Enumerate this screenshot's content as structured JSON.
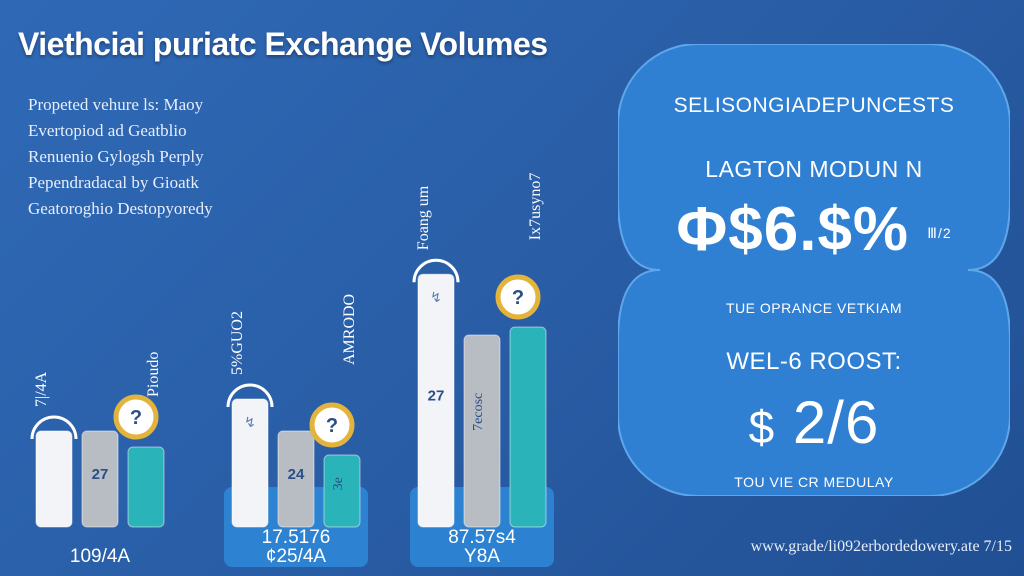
{
  "title": "Viethciai puriatc Exchange Volumes",
  "description": [
    "Propeted vehure ls: Maoy",
    "Evertopiod ad Geatblio",
    "Renuenio Gylogsh Perply",
    "Pependradacal by Gioatk",
    "Geatoroghio Destopyoredy"
  ],
  "colors": {
    "background": "#2a5fa8",
    "panel": "#2f7fd3",
    "bar_white": "#f2f4f7",
    "bar_gray": "#b8bcc3",
    "bar_teal": "#2ab3b8",
    "platform": "#2e86d6",
    "badge_ring": "#e2b43c"
  },
  "chart_data": {
    "type": "bar",
    "groups": [
      {
        "label": "109/4A",
        "total_label": "",
        "values": [
          {
            "value": 60,
            "label": "",
            "vertical_label": "",
            "icon": ""
          },
          {
            "value": 60,
            "label": "27",
            "vertical_label": "",
            "icon": ""
          },
          {
            "value": 50,
            "label": "",
            "vertical_label": "",
            "icon": ""
          }
        ],
        "top_labels": [
          "7|/4A",
          "Pioudo"
        ],
        "badge": "?"
      },
      {
        "label": "¢25/4A",
        "total_label": "17.5176",
        "values": [
          {
            "value": 80,
            "label": "",
            "vertical_label": "",
            "icon": "↯"
          },
          {
            "value": 60,
            "label": "24",
            "vertical_label": "",
            "icon": ""
          },
          {
            "value": 45,
            "label": "",
            "vertical_label": "3e",
            "icon": ""
          }
        ],
        "top_labels": [
          "5%GUO2",
          "AMRODO"
        ],
        "badge": "?"
      },
      {
        "label": "Y8A",
        "total_label": "87.57s4",
        "values": [
          {
            "value": 158,
            "label": "27",
            "vertical_label": "",
            "icon": "↯"
          },
          {
            "value": 120,
            "label": "",
            "vertical_label": "7ecosc",
            "icon": ""
          },
          {
            "value": 125,
            "label": "",
            "vertical_label": "",
            "icon": ""
          }
        ],
        "top_labels": [
          "Foang um",
          "Ix7usyno7"
        ],
        "badge": "?"
      }
    ]
  },
  "panel": {
    "heading": "SELISONGIADEPUNCESTS",
    "stat1_label": "LAGTON MODUN N",
    "stat1_value": "Φ$6.$%",
    "stat1_suffix": "Ⅲ/2",
    "stat1_caption": "TUE OPRANCE VETKIAM",
    "stat2_label": "WEL-6 ROOST:",
    "stat2_prefix": "$",
    "stat2_value": "2/6",
    "stat2_caption": "TOU VIE CR MEDULAY"
  },
  "footer": "www.grade/li092erbordedowery.ate 7/15"
}
